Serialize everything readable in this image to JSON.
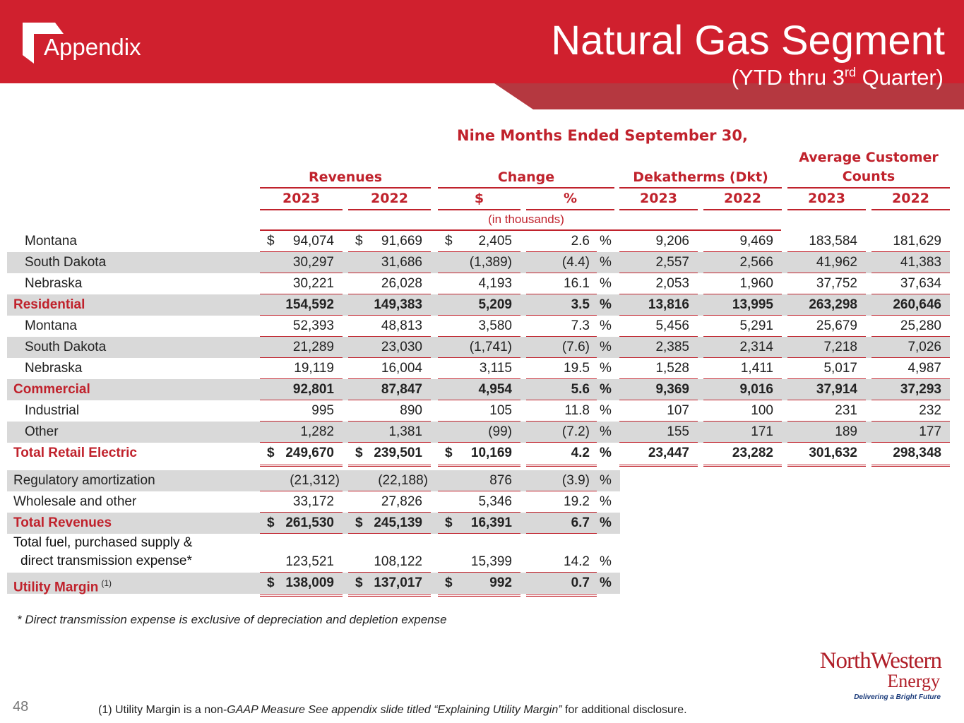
{
  "header": {
    "section": "Appendix",
    "title": "Natural Gas Segment",
    "subtitle_pre": "(YTD thru 3",
    "subtitle_sup": "rd",
    "subtitle_post": " Quarter)"
  },
  "table": {
    "super_header": "Nine Months Ended September 30,",
    "groups": [
      "Revenues",
      "Change",
      "Dekatherms (Dkt)",
      "Average Customer Counts"
    ],
    "columns": [
      "2023",
      "2022",
      "$",
      "%",
      "2023",
      "2022",
      "2023",
      "2022"
    ],
    "units_note": "(in thousands)",
    "rows": [
      {
        "label": "Montana",
        "cells": [
          {
            "currency": "$",
            "amount": "94,074"
          },
          {
            "currency": "$",
            "amount": "91,669"
          },
          {
            "currency": "$",
            "amount": "2,405"
          },
          "2.6",
          "9,206",
          "9,469",
          "183,584",
          "181,629"
        ],
        "pct_sign": "%"
      },
      {
        "label": "South Dakota",
        "cells": [
          "30,297",
          "31,686",
          "(1,389)",
          "(4.4)",
          "2,557",
          "2,566",
          "41,962",
          "41,383"
        ],
        "pct_sign": "%"
      },
      {
        "label": "Nebraska",
        "cells": [
          "30,221",
          "26,028",
          "4,193",
          "16.1",
          "2,053",
          "1,960",
          "37,752",
          "37,634"
        ],
        "pct_sign": "%"
      },
      {
        "label": "Residential",
        "cells": [
          "154,592",
          "149,383",
          "5,209",
          "3.5",
          "13,816",
          "13,995",
          "263,298",
          "260,646"
        ],
        "pct_sign": "%"
      },
      {
        "label": "Montana",
        "cells": [
          "52,393",
          "48,813",
          "3,580",
          "7.3",
          "5,456",
          "5,291",
          "25,679",
          "25,280"
        ],
        "pct_sign": "%"
      },
      {
        "label": "South Dakota",
        "cells": [
          "21,289",
          "23,030",
          "(1,741)",
          "(7.6)",
          "2,385",
          "2,314",
          "7,218",
          "7,026"
        ],
        "pct_sign": "%"
      },
      {
        "label": "Nebraska",
        "cells": [
          "19,119",
          "16,004",
          "3,115",
          "19.5",
          "1,528",
          "1,411",
          "5,017",
          "4,987"
        ],
        "pct_sign": "%"
      },
      {
        "label": "Commercial",
        "cells": [
          "92,801",
          "87,847",
          "4,954",
          "5.6",
          "9,369",
          "9,016",
          "37,914",
          "37,293"
        ],
        "pct_sign": "%"
      },
      {
        "label": "Industrial",
        "cells": [
          "995",
          "890",
          "105",
          "11.8",
          "107",
          "100",
          "231",
          "232"
        ],
        "pct_sign": "%"
      },
      {
        "label": "Other",
        "cells": [
          "1,282",
          "1,381",
          "(99)",
          "(7.2)",
          "155",
          "171",
          "189",
          "177"
        ],
        "pct_sign": "%"
      },
      {
        "label": "Total Retail Electric",
        "cells": [
          {
            "currency": "$",
            "amount": "249,670"
          },
          {
            "currency": "$",
            "amount": "239,501"
          },
          {
            "currency": "$",
            "amount": "10,169"
          },
          "4.2",
          "23,447",
          "23,282",
          "301,632",
          "298,348"
        ],
        "pct_sign": "%"
      },
      {
        "label": "Regulatory amortization",
        "cells": [
          "(21,312)",
          "(22,188)",
          "876",
          "(3.9)"
        ],
        "pct_sign": "%"
      },
      {
        "label": "Wholesale and other",
        "cells": [
          "33,172",
          "27,826",
          "5,346",
          "19.2"
        ],
        "pct_sign": "%"
      },
      {
        "label": "Total Revenues",
        "cells": [
          {
            "currency": "$",
            "amount": "261,530"
          },
          {
            "currency": "$",
            "amount": "245,139"
          },
          {
            "currency": "$",
            "amount": "16,391"
          },
          "6.7"
        ],
        "pct_sign": "%"
      },
      {
        "label_lines": [
          "Total fuel, purchased supply &",
          "direct transmission expense*"
        ],
        "cells": [
          "123,521",
          "108,122",
          "15,399",
          "14.2"
        ],
        "pct_sign": "%"
      },
      {
        "label": "Utility Margin",
        "label_note": "(1)",
        "cells": [
          {
            "currency": "$",
            "amount": "138,009"
          },
          {
            "currency": "$",
            "amount": "137,017"
          },
          {
            "currency": "$",
            "amount": "992"
          },
          "0.7"
        ],
        "pct_sign": "%"
      }
    ]
  },
  "footnote": "* Direct transmission expense is exclusive of depreciation and depletion expense",
  "page_number": "48",
  "disclosure": {
    "pre": "(1) Utility Margin is a non-",
    "italic": "GAAP Measure  See appendix slide titled “Explaining Utility Margin”",
    "post": " for additional disclosure."
  },
  "logo": {
    "name": "NorthWestern",
    "sub": "Energy",
    "tagline": "Delivering a Bright Future"
  }
}
